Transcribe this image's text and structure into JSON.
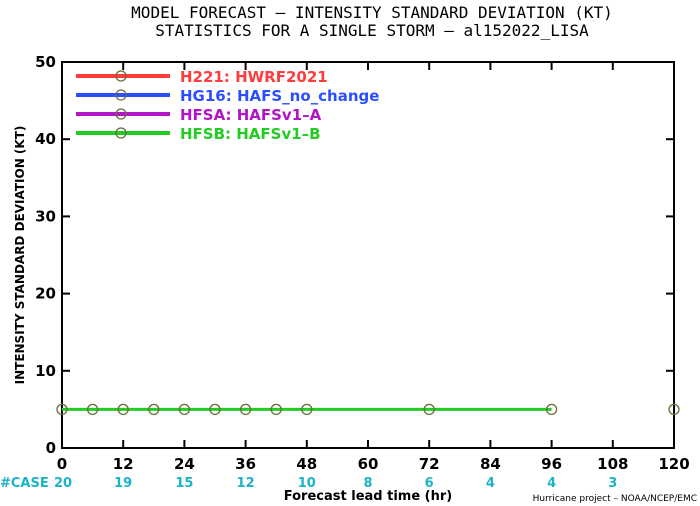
{
  "chart_data": {
    "type": "line",
    "title": "MODEL FORECAST – INTENSITY STANDARD DEVIATION (KT)",
    "subtitle": "STATISTICS FOR A SINGLE STORM – al152022_LISA",
    "xlabel": "Forecast lead time (hr)",
    "ylabel": "INTENSITY STANDARD DEVIATION (KT)",
    "xlim": [
      0,
      120
    ],
    "ylim": [
      0,
      50
    ],
    "xticks": [
      0,
      12,
      24,
      36,
      48,
      60,
      72,
      84,
      96,
      108,
      120
    ],
    "yticks": [
      0,
      10,
      20,
      30,
      40,
      50
    ],
    "grid": false,
    "legend_position": "top-left",
    "series": [
      {
        "name": "H221: HWRF2021",
        "color": "#ff3b3b",
        "x": [],
        "y": []
      },
      {
        "name": "HG16: HAFS_no_change",
        "color": "#2b4fff",
        "x": [],
        "y": []
      },
      {
        "name": "HFSA: HAFSv1–A",
        "color": "#b414c8",
        "x": [],
        "y": []
      },
      {
        "name": "HFSB: HAFSv1–B",
        "color": "#22cc22",
        "x": [
          0,
          6,
          12,
          18,
          24,
          30,
          36,
          42,
          48,
          72,
          96
        ],
        "y": [
          5,
          5,
          5,
          5,
          5,
          5,
          5,
          5,
          5,
          5,
          5
        ]
      }
    ],
    "isolated_points": [
      {
        "x": 120,
        "y": 5,
        "color": "#22cc22"
      }
    ],
    "case_label": "#CASE",
    "cases": [
      {
        "x": 0,
        "n": "20"
      },
      {
        "x": 12,
        "n": "19"
      },
      {
        "x": 24,
        "n": "15"
      },
      {
        "x": 36,
        "n": "12"
      },
      {
        "x": 48,
        "n": "10"
      },
      {
        "x": 60,
        "n": "8"
      },
      {
        "x": 72,
        "n": "6"
      },
      {
        "x": 84,
        "n": "4"
      },
      {
        "x": 96,
        "n": "4"
      },
      {
        "x": 108,
        "n": "3"
      }
    ]
  },
  "credit": "Hurricane project – NOAA/NCEP/EMC"
}
